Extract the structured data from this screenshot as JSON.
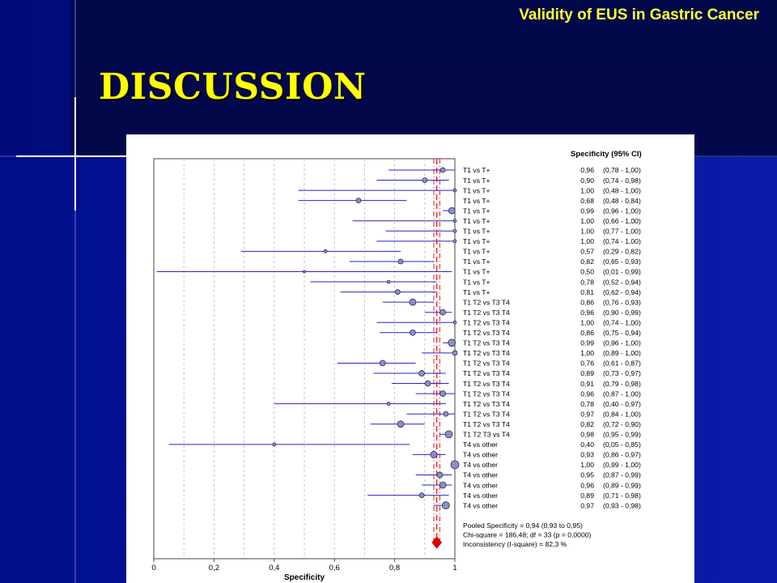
{
  "header": {
    "title": "Validity of EUS in Gastric Cancer"
  },
  "slide": {
    "title": "DISCUSSION"
  },
  "colors": {
    "background": "#03149a",
    "title_yellow": "#ffff00",
    "ci_line": "#2626c8",
    "marker_fill": "#8a8fc4",
    "pooled": "#e00000",
    "reference_line": "#e02020"
  },
  "chart_data": {
    "type": "forest",
    "xlabel": "Specificity",
    "xlim": [
      0,
      1
    ],
    "x_ticks": [
      "0",
      "0,2",
      "0,4",
      "0,6",
      "0,8",
      "1"
    ],
    "vertical_gridlines": [
      0.1,
      0.2,
      0.3,
      0.4,
      0.5,
      0.6,
      0.7,
      0.8,
      0.9
    ],
    "column_header": "Specificity (95% CI)",
    "studies": [
      {
        "label": "T1 vs T+",
        "est": 0.96,
        "lo": 0.78,
        "hi": 1.0,
        "value": "0,96",
        "ci": "(0,78 - 1,00)",
        "w": 3
      },
      {
        "label": "T1 vs T+",
        "est": 0.9,
        "lo": 0.74,
        "hi": 0.98,
        "value": "0,90",
        "ci": "(0,74 - 0,98)",
        "w": 3
      },
      {
        "label": "T1 vs T+",
        "est": 1.0,
        "lo": 0.48,
        "hi": 1.0,
        "value": "1,00",
        "ci": "(0,48 - 1,00)",
        "w": 2
      },
      {
        "label": "T1 vs T+",
        "est": 0.68,
        "lo": 0.48,
        "hi": 0.84,
        "value": "0,68",
        "ci": "(0,48 - 0,84)",
        "w": 3
      },
      {
        "label": "T1 vs T+",
        "est": 0.99,
        "lo": 0.96,
        "hi": 1.0,
        "value": "0,99",
        "ci": "(0,96 - 1,00)",
        "w": 4
      },
      {
        "label": "T1 vs T+",
        "est": 1.0,
        "lo": 0.66,
        "hi": 1.0,
        "value": "1,00",
        "ci": "(0,66 - 1,00)",
        "w": 2
      },
      {
        "label": "T1 vs T+",
        "est": 1.0,
        "lo": 0.77,
        "hi": 1.0,
        "value": "1,00",
        "ci": "(0,77 - 1,00)",
        "w": 2
      },
      {
        "label": "T1 vs T+",
        "est": 1.0,
        "lo": 0.74,
        "hi": 1.0,
        "value": "1,00",
        "ci": "(0,74 - 1,00)",
        "w": 2
      },
      {
        "label": "T1 vs T+",
        "est": 0.57,
        "lo": 0.29,
        "hi": 0.82,
        "value": "0,57",
        "ci": "(0,29 - 0,82)",
        "w": 2
      },
      {
        "label": "T1 vs T+",
        "est": 0.82,
        "lo": 0.65,
        "hi": 0.93,
        "value": "0,82",
        "ci": "(0,65 - 0,93)",
        "w": 3
      },
      {
        "label": "T1 vs T+",
        "est": 0.5,
        "lo": 0.01,
        "hi": 0.99,
        "value": "0,50",
        "ci": "(0,01 - 0,99)",
        "w": 1.5
      },
      {
        "label": "T1 vs T+",
        "est": 0.78,
        "lo": 0.52,
        "hi": 0.94,
        "value": "0,78",
        "ci": "(0,52 - 0,94)",
        "w": 2
      },
      {
        "label": "T1 vs T+",
        "est": 0.81,
        "lo": 0.62,
        "hi": 0.94,
        "value": "0,81",
        "ci": "(0,62 - 0,94)",
        "w": 3
      },
      {
        "label": "T1 T2 vs T3 T4",
        "est": 0.86,
        "lo": 0.76,
        "hi": 0.93,
        "value": "0,86",
        "ci": "(0,76 - 0,93)",
        "w": 4
      },
      {
        "label": "T1 T2 vs T3 T4",
        "est": 0.96,
        "lo": 0.9,
        "hi": 0.99,
        "value": "0,96",
        "ci": "(0,90 - 0,99)",
        "w": 3.5
      },
      {
        "label": "T1 T2 vs T3 T4",
        "est": 1.0,
        "lo": 0.74,
        "hi": 1.0,
        "value": "1,00",
        "ci": "(0,74 - 1,00)",
        "w": 2
      },
      {
        "label": "T1 T2 vs T3 T4",
        "est": 0.86,
        "lo": 0.75,
        "hi": 0.94,
        "value": "0,86",
        "ci": "(0,75 - 0,94)",
        "w": 3.5
      },
      {
        "label": "T1 T2 vs T3 T4",
        "est": 0.99,
        "lo": 0.96,
        "hi": 1.0,
        "value": "0,99",
        "ci": "(0,96 - 1,00)",
        "w": 4.5
      },
      {
        "label": "T1 T2 vs T3 T4",
        "est": 1.0,
        "lo": 0.89,
        "hi": 1.0,
        "value": "1,00",
        "ci": "(0,89 - 1,00)",
        "w": 3
      },
      {
        "label": "T1 T2 vs T3 T4",
        "est": 0.76,
        "lo": 0.61,
        "hi": 0.87,
        "value": "0,76",
        "ci": "(0,61 - 0,87)",
        "w": 3.5
      },
      {
        "label": "T1 T2 vs T3 T4",
        "est": 0.89,
        "lo": 0.73,
        "hi": 0.97,
        "value": "0,89",
        "ci": "(0,73 - 0,97)",
        "w": 3.5
      },
      {
        "label": "T1 T2 vs T3 T4",
        "est": 0.91,
        "lo": 0.79,
        "hi": 0.98,
        "value": "0,91",
        "ci": "(0,79 - 0,98)",
        "w": 3.5
      },
      {
        "label": "T1 T2 vs T3 T4",
        "est": 0.96,
        "lo": 0.87,
        "hi": 1.0,
        "value": "0,96",
        "ci": "(0,87 - 1,00)",
        "w": 3.5
      },
      {
        "label": "T1 T2 vs T3 T4",
        "est": 0.78,
        "lo": 0.4,
        "hi": 0.97,
        "value": "0,78",
        "ci": "(0,40 - 0,97)",
        "w": 2
      },
      {
        "label": "T1 T2 vs T3 T4",
        "est": 0.97,
        "lo": 0.84,
        "hi": 1.0,
        "value": "0,97",
        "ci": "(0,84 - 1,00)",
        "w": 3
      },
      {
        "label": "T1 T2 vs T3 T4",
        "est": 0.82,
        "lo": 0.72,
        "hi": 0.9,
        "value": "0,82",
        "ci": "(0,72 - 0,90)",
        "w": 4
      },
      {
        "label": "T1 T2 T3 vs T4",
        "est": 0.98,
        "lo": 0.95,
        "hi": 0.99,
        "value": "0,98",
        "ci": "(0,95 - 0,99)",
        "w": 4.5
      },
      {
        "label": "T4 vs other",
        "est": 0.4,
        "lo": 0.05,
        "hi": 0.85,
        "value": "0,40",
        "ci": "(0,05 - 0,85)",
        "w": 2
      },
      {
        "label": "T4 vs other",
        "est": 0.93,
        "lo": 0.86,
        "hi": 0.97,
        "value": "0,93",
        "ci": "(0,86 - 0,97)",
        "w": 4
      },
      {
        "label": "T4 vs other",
        "est": 1.0,
        "lo": 0.99,
        "hi": 1.0,
        "value": "1,00",
        "ci": "(0,99 - 1,00)",
        "w": 5
      },
      {
        "label": "T4 vs other",
        "est": 0.95,
        "lo": 0.87,
        "hi": 0.99,
        "value": "0,95",
        "ci": "(0,87 - 0,99)",
        "w": 3.5
      },
      {
        "label": "T4 vs other",
        "est": 0.96,
        "lo": 0.89,
        "hi": 0.99,
        "value": "0,96",
        "ci": "(0,89 - 0,99)",
        "w": 4
      },
      {
        "label": "T4 vs other",
        "est": 0.89,
        "lo": 0.71,
        "hi": 0.98,
        "value": "0,89",
        "ci": "(0,71 - 0,98)",
        "w": 3
      },
      {
        "label": "T4 vs other",
        "est": 0.97,
        "lo": 0.93,
        "hi": 0.98,
        "value": "0,97",
        "ci": "(0,93 - 0,98)",
        "w": 4.5
      }
    ],
    "pooled": {
      "est": 0.94,
      "lo": 0.93,
      "hi": 0.95
    },
    "summary_lines": [
      "Pooled Specificity = 0,94 (0,93 to 0,95)",
      "Chi-square = 186,48; df =  33 (p = 0,0000)",
      "Inconsistency (I-square) = 82,3 %"
    ]
  }
}
